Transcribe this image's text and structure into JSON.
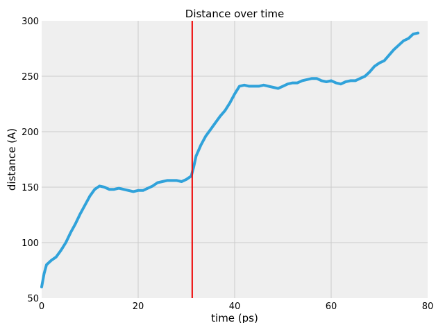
{
  "chart_data": {
    "type": "line",
    "title": "Distance over time",
    "xlabel": "time (ps)",
    "ylabel": "distance (A)",
    "xlim": [
      0,
      80
    ],
    "ylim": [
      50,
      300
    ],
    "x_ticks": [
      "0",
      "20",
      "40",
      "60",
      "80"
    ],
    "y_ticks": [
      "50",
      "100",
      "150",
      "200",
      "250",
      "300"
    ],
    "grid": true,
    "legend": "none",
    "background_color": "#efefef",
    "grid_color": "#cbcbcb",
    "series": [
      {
        "color": "#30a2da",
        "x": [
          0,
          0.5,
          1,
          2,
          3,
          4,
          5,
          6,
          7,
          8,
          9,
          10,
          11,
          12,
          13,
          14,
          15,
          16,
          17,
          18,
          19,
          20,
          21,
          22,
          23,
          24,
          25,
          26,
          27,
          28,
          29,
          30,
          31,
          31.5,
          32,
          33,
          34,
          35,
          36,
          37,
          38,
          39,
          40,
          41,
          42,
          43,
          44,
          45,
          46,
          47,
          48,
          49,
          50,
          51,
          52,
          53,
          54,
          55,
          56,
          57,
          58,
          59,
          60,
          61,
          62,
          63,
          64,
          65,
          66,
          67,
          68,
          69,
          70,
          71,
          72,
          73,
          74,
          75,
          76,
          77,
          78
        ],
        "y": [
          60,
          72,
          80,
          84,
          87,
          93,
          100,
          109,
          117,
          126,
          134,
          142,
          148,
          151,
          150,
          148,
          148,
          149,
          148,
          147,
          146,
          147,
          147,
          149,
          151,
          154,
          155,
          156,
          156,
          156,
          155,
          157,
          160,
          168,
          178,
          188,
          196,
          202,
          208,
          214,
          219,
          226,
          234,
          241,
          242,
          241,
          241,
          241,
          242,
          241,
          240,
          239,
          241,
          243,
          244,
          244,
          246,
          247,
          248,
          248,
          246,
          245,
          246,
          244,
          243,
          245,
          246,
          246,
          248,
          250,
          254,
          259,
          262,
          264,
          269,
          274,
          278,
          282,
          284,
          288,
          289
        ]
      }
    ],
    "marker_line": {
      "x": 31.2,
      "color": "#ee0000"
    }
  }
}
